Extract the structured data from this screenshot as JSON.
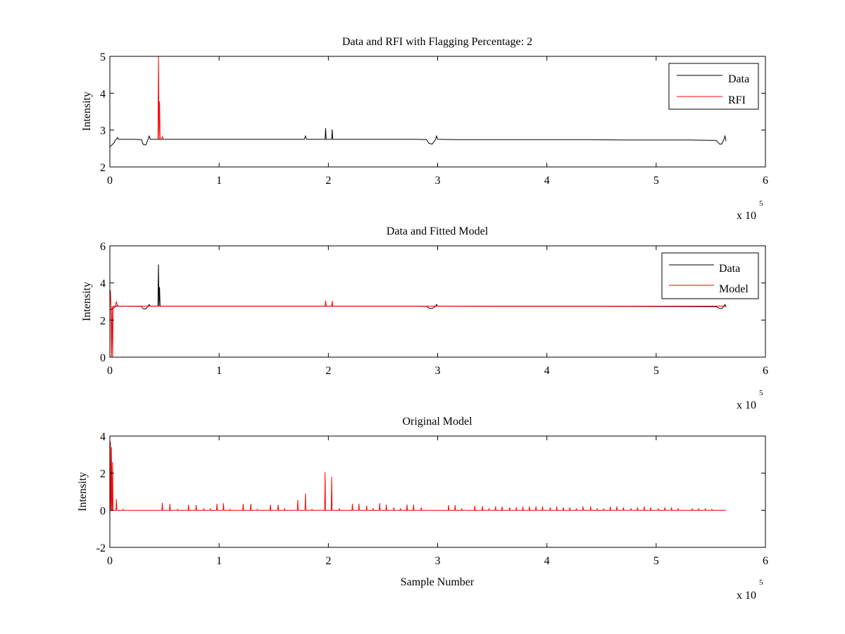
{
  "figure": {
    "background": "#ffffff"
  },
  "chart_data": [
    {
      "type": "line",
      "title": "Data and RFI with Flagging Percentage: 2",
      "xlabel": "",
      "ylabel": "Intensity",
      "xlim": [
        0,
        6
      ],
      "ylim": [
        2,
        5
      ],
      "xticks": [
        "0",
        "1",
        "2",
        "3",
        "4",
        "5",
        "6"
      ],
      "yticks": [
        "2",
        "3",
        "4",
        "5"
      ],
      "x_multiplier_base": "x 10",
      "x_multiplier_exponent": "5",
      "grid": false,
      "legend_position": "top-right",
      "series": [
        {
          "name": "Data",
          "color": "#000000",
          "points": [
            [
              0.0,
              2.55
            ],
            [
              0.02,
              2.6
            ],
            [
              0.04,
              2.66
            ],
            [
              0.05,
              2.73
            ],
            [
              0.06,
              2.75
            ],
            [
              0.07,
              2.8
            ],
            [
              0.08,
              2.75
            ],
            [
              0.15,
              2.75
            ],
            [
              0.22,
              2.75
            ],
            [
              0.29,
              2.74
            ],
            [
              0.3,
              2.65
            ],
            [
              0.31,
              2.6
            ],
            [
              0.33,
              2.6
            ],
            [
              0.35,
              2.75
            ],
            [
              0.36,
              2.84
            ],
            [
              0.37,
              2.75
            ],
            [
              0.42,
              2.75
            ],
            [
              0.44,
              2.75
            ],
            [
              0.445,
              2.75
            ],
            [
              0.47,
              2.75
            ],
            [
              0.6,
              2.75
            ],
            [
              0.8,
              2.75
            ],
            [
              1.0,
              2.75
            ],
            [
              1.2,
              2.75
            ],
            [
              1.4,
              2.75
            ],
            [
              1.6,
              2.75
            ],
            [
              1.78,
              2.75
            ],
            [
              1.79,
              2.84
            ],
            [
              1.8,
              2.75
            ],
            [
              1.97,
              2.75
            ],
            [
              1.975,
              3.05
            ],
            [
              1.98,
              2.75
            ],
            [
              2.03,
              2.75
            ],
            [
              2.035,
              3.02
            ],
            [
              2.04,
              2.75
            ],
            [
              2.2,
              2.75
            ],
            [
              2.4,
              2.75
            ],
            [
              2.6,
              2.75
            ],
            [
              2.8,
              2.75
            ],
            [
              2.9,
              2.74
            ],
            [
              2.92,
              2.64
            ],
            [
              2.95,
              2.62
            ],
            [
              2.98,
              2.74
            ],
            [
              2.99,
              2.84
            ],
            [
              3.0,
              2.75
            ],
            [
              3.2,
              2.74
            ],
            [
              3.5,
              2.74
            ],
            [
              3.8,
              2.74
            ],
            [
              4.1,
              2.74
            ],
            [
              4.4,
              2.74
            ],
            [
              4.7,
              2.73
            ],
            [
              5.0,
              2.73
            ],
            [
              5.3,
              2.73
            ],
            [
              5.55,
              2.72
            ],
            [
              5.58,
              2.62
            ],
            [
              5.6,
              2.62
            ],
            [
              5.62,
              2.75
            ],
            [
              5.63,
              2.84
            ],
            [
              5.64,
              2.7
            ]
          ]
        },
        {
          "name": "RFI",
          "color": "#ff0000",
          "points": [
            [
              0.44,
              2.75
            ],
            [
              0.445,
              5.0
            ],
            [
              0.45,
              2.75
            ],
            [
              0.455,
              3.78
            ],
            [
              0.46,
              2.75
            ],
            [
              0.47,
              2.75
            ],
            [
              0.48,
              2.82
            ],
            [
              0.49,
              2.75
            ]
          ]
        }
      ]
    },
    {
      "type": "line",
      "title": "Data and Fitted Model",
      "xlabel": "",
      "ylabel": "Intensity",
      "xlim": [
        0,
        6
      ],
      "ylim": [
        0,
        6
      ],
      "xticks": [
        "0",
        "1",
        "2",
        "3",
        "4",
        "5",
        "6"
      ],
      "yticks": [
        "0",
        "2",
        "4",
        "6"
      ],
      "x_multiplier_base": "x 10",
      "x_multiplier_exponent": "5",
      "grid": false,
      "legend_position": "top-right",
      "series": [
        {
          "name": "Data",
          "color": "#000000",
          "points": [
            [
              0.0,
              2.55
            ],
            [
              0.02,
              2.6
            ],
            [
              0.04,
              2.66
            ],
            [
              0.05,
              2.73
            ],
            [
              0.06,
              2.75
            ],
            [
              0.07,
              2.8
            ],
            [
              0.08,
              2.75
            ],
            [
              0.29,
              2.74
            ],
            [
              0.3,
              2.65
            ],
            [
              0.31,
              2.6
            ],
            [
              0.33,
              2.6
            ],
            [
              0.35,
              2.75
            ],
            [
              0.36,
              2.84
            ],
            [
              0.37,
              2.75
            ],
            [
              0.44,
              2.75
            ],
            [
              0.445,
              5.0
            ],
            [
              0.45,
              2.75
            ],
            [
              0.455,
              3.78
            ],
            [
              0.46,
              2.75
            ],
            [
              0.8,
              2.75
            ],
            [
              1.2,
              2.75
            ],
            [
              1.6,
              2.75
            ],
            [
              2.0,
              2.75
            ],
            [
              2.4,
              2.75
            ],
            [
              2.8,
              2.75
            ],
            [
              2.9,
              2.74
            ],
            [
              2.92,
              2.64
            ],
            [
              2.95,
              2.62
            ],
            [
              2.98,
              2.74
            ],
            [
              2.99,
              2.84
            ],
            [
              3.0,
              2.75
            ],
            [
              3.5,
              2.74
            ],
            [
              4.0,
              2.74
            ],
            [
              4.5,
              2.74
            ],
            [
              5.0,
              2.73
            ],
            [
              5.55,
              2.72
            ],
            [
              5.58,
              2.62
            ],
            [
              5.6,
              2.62
            ],
            [
              5.62,
              2.75
            ],
            [
              5.63,
              2.84
            ],
            [
              5.64,
              2.7
            ]
          ]
        },
        {
          "name": "Model",
          "color": "#ff0000",
          "points": [
            [
              0.0,
              2.75
            ],
            [
              0.005,
              3.6
            ],
            [
              0.01,
              2.75
            ],
            [
              0.015,
              0.0
            ],
            [
              0.02,
              2.75
            ],
            [
              0.025,
              0.0
            ],
            [
              0.03,
              2.75
            ],
            [
              0.05,
              2.75
            ],
            [
              0.06,
              3.0
            ],
            [
              0.07,
              2.75
            ],
            [
              0.5,
              2.75
            ],
            [
              1.0,
              2.75
            ],
            [
              1.5,
              2.75
            ],
            [
              1.97,
              2.75
            ],
            [
              1.975,
              3.05
            ],
            [
              1.98,
              2.75
            ],
            [
              2.03,
              2.75
            ],
            [
              2.035,
              3.02
            ],
            [
              2.04,
              2.75
            ],
            [
              2.5,
              2.75
            ],
            [
              3.0,
              2.75
            ],
            [
              3.5,
              2.75
            ],
            [
              4.0,
              2.75
            ],
            [
              4.5,
              2.75
            ],
            [
              5.0,
              2.75
            ],
            [
              5.5,
              2.75
            ],
            [
              5.64,
              2.75
            ]
          ]
        }
      ]
    },
    {
      "type": "line",
      "title": "Original Model",
      "xlabel": "Sample Number",
      "ylabel": "Intensity",
      "xlim": [
        0,
        6
      ],
      "ylim": [
        -2,
        4
      ],
      "xticks": [
        "0",
        "1",
        "2",
        "3",
        "4",
        "5",
        "6"
      ],
      "yticks": [
        "-2",
        "0",
        "2",
        "4"
      ],
      "x_multiplier_base": "x 10",
      "x_multiplier_exponent": "5",
      "grid": false,
      "legend_position": "none",
      "series": [
        {
          "color": "#ff0000",
          "baseline": 0,
          "spikes": [
            [
              0.005,
              3.7
            ],
            [
              0.015,
              3.4
            ],
            [
              0.025,
              2.6
            ],
            [
              0.06,
              0.6
            ],
            [
              0.12,
              0.05
            ],
            [
              0.48,
              0.4
            ],
            [
              0.55,
              0.35
            ],
            [
              0.62,
              0.05
            ],
            [
              0.72,
              0.3
            ],
            [
              0.79,
              0.28
            ],
            [
              0.86,
              0.1
            ],
            [
              0.92,
              0.1
            ],
            [
              0.98,
              0.35
            ],
            [
              1.04,
              0.38
            ],
            [
              1.1,
              0.05
            ],
            [
              1.22,
              0.35
            ],
            [
              1.29,
              0.35
            ],
            [
              1.35,
              0.05
            ],
            [
              1.47,
              0.3
            ],
            [
              1.54,
              0.3
            ],
            [
              1.6,
              0.1
            ],
            [
              1.72,
              0.55
            ],
            [
              1.79,
              0.9
            ],
            [
              1.85,
              0.05
            ],
            [
              1.97,
              2.05
            ],
            [
              2.03,
              1.8
            ],
            [
              2.1,
              0.1
            ],
            [
              2.22,
              0.35
            ],
            [
              2.28,
              0.35
            ],
            [
              2.35,
              0.25
            ],
            [
              2.41,
              0.1
            ],
            [
              2.47,
              0.38
            ],
            [
              2.53,
              0.3
            ],
            [
              2.6,
              0.15
            ],
            [
              2.66,
              0.1
            ],
            [
              2.72,
              0.3
            ],
            [
              2.78,
              0.3
            ],
            [
              2.85,
              0.15
            ],
            [
              3.1,
              0.28
            ],
            [
              3.16,
              0.28
            ],
            [
              3.22,
              0.1
            ],
            [
              3.34,
              0.25
            ],
            [
              3.41,
              0.22
            ],
            [
              3.47,
              0.1
            ],
            [
              3.53,
              0.2
            ],
            [
              3.59,
              0.2
            ],
            [
              3.66,
              0.15
            ],
            [
              3.72,
              0.15
            ],
            [
              3.78,
              0.2
            ],
            [
              3.84,
              0.2
            ],
            [
              3.9,
              0.2
            ],
            [
              3.96,
              0.2
            ],
            [
              4.03,
              0.15
            ],
            [
              4.09,
              0.2
            ],
            [
              4.15,
              0.15
            ],
            [
              4.21,
              0.15
            ],
            [
              4.27,
              0.1
            ],
            [
              4.33,
              0.2
            ],
            [
              4.4,
              0.2
            ],
            [
              4.46,
              0.1
            ],
            [
              4.52,
              0.1
            ],
            [
              4.58,
              0.2
            ],
            [
              4.64,
              0.2
            ],
            [
              4.7,
              0.15
            ],
            [
              4.77,
              0.1
            ],
            [
              4.83,
              0.15
            ],
            [
              4.89,
              0.2
            ],
            [
              4.95,
              0.15
            ],
            [
              5.02,
              0.1
            ],
            [
              5.08,
              0.15
            ],
            [
              5.14,
              0.15
            ],
            [
              5.2,
              0.1
            ],
            [
              5.33,
              0.1
            ],
            [
              5.39,
              0.1
            ],
            [
              5.45,
              0.08
            ],
            [
              5.51,
              0.05
            ]
          ],
          "x_end": 5.64
        }
      ]
    }
  ]
}
